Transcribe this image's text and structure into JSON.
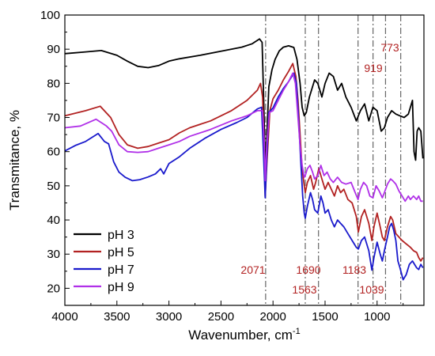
{
  "chart_data": {
    "type": "line",
    "xlabel": "Wavenumber, cm",
    "xlabel_sup": "-1",
    "ylabel": "Transmitance, %",
    "xlim": [
      4000,
      550
    ],
    "ylim": [
      15,
      100
    ],
    "xticks": [
      4000,
      3500,
      3000,
      2500,
      2000,
      1500,
      1000
    ],
    "yticks": [
      20,
      30,
      40,
      50,
      60,
      70,
      80,
      90,
      100
    ],
    "grid": false,
    "legend_position": "bottom-left",
    "annotation_color": "#b22222",
    "annotations": [
      {
        "label": "2071",
        "x": 2071
      },
      {
        "label": "1690",
        "x": 1690
      },
      {
        "label": "1563",
        "x": 1563
      },
      {
        "label": "1183",
        "x": 1183
      },
      {
        "label": "1039",
        "x": 1039
      },
      {
        "label": "919",
        "x": 919
      },
      {
        "label": "773",
        "x": 773
      }
    ],
    "series": [
      {
        "name": "pH 3",
        "color": "#000000",
        "points": [
          [
            4000,
            88.7
          ],
          [
            3800,
            89.2
          ],
          [
            3650,
            89.6
          ],
          [
            3500,
            88.2
          ],
          [
            3400,
            86.5
          ],
          [
            3300,
            85
          ],
          [
            3200,
            84.6
          ],
          [
            3100,
            85.2
          ],
          [
            3000,
            86.5
          ],
          [
            2900,
            87.2
          ],
          [
            2700,
            88.2
          ],
          [
            2500,
            89.4
          ],
          [
            2300,
            90.6
          ],
          [
            2200,
            91.6
          ],
          [
            2130,
            93
          ],
          [
            2105,
            92
          ],
          [
            2090,
            76
          ],
          [
            2075,
            57
          ],
          [
            2065,
            60
          ],
          [
            2040,
            79
          ],
          [
            2010,
            84
          ],
          [
            1980,
            87
          ],
          [
            1940,
            89.5
          ],
          [
            1900,
            90.6
          ],
          [
            1850,
            91
          ],
          [
            1800,
            90.5
          ],
          [
            1770,
            87
          ],
          [
            1740,
            80
          ],
          [
            1720,
            73
          ],
          [
            1700,
            70.5
          ],
          [
            1680,
            71.5
          ],
          [
            1650,
            76
          ],
          [
            1600,
            81
          ],
          [
            1570,
            80
          ],
          [
            1530,
            76
          ],
          [
            1500,
            80
          ],
          [
            1460,
            83
          ],
          [
            1420,
            82
          ],
          [
            1380,
            78
          ],
          [
            1340,
            80
          ],
          [
            1300,
            76
          ],
          [
            1250,
            73
          ],
          [
            1200,
            69
          ],
          [
            1160,
            72
          ],
          [
            1120,
            74
          ],
          [
            1080,
            69
          ],
          [
            1040,
            73
          ],
          [
            1000,
            72
          ],
          [
            960,
            66
          ],
          [
            930,
            67
          ],
          [
            900,
            70
          ],
          [
            860,
            72
          ],
          [
            820,
            71
          ],
          [
            780,
            70.5
          ],
          [
            740,
            70
          ],
          [
            700,
            71
          ],
          [
            660,
            75
          ],
          [
            645,
            60
          ],
          [
            630,
            57.5
          ],
          [
            615,
            66
          ],
          [
            600,
            67
          ],
          [
            580,
            66
          ],
          [
            560,
            58
          ]
        ]
      },
      {
        "name": "pH 5",
        "color": "#b22222",
        "points": [
          [
            4000,
            70.5
          ],
          [
            3800,
            72
          ],
          [
            3660,
            73.3
          ],
          [
            3560,
            70
          ],
          [
            3480,
            65
          ],
          [
            3400,
            62
          ],
          [
            3300,
            61
          ],
          [
            3200,
            61.5
          ],
          [
            3100,
            62.5
          ],
          [
            3000,
            63.5
          ],
          [
            2900,
            65.5
          ],
          [
            2800,
            67
          ],
          [
            2600,
            69
          ],
          [
            2400,
            72
          ],
          [
            2250,
            75
          ],
          [
            2150,
            78
          ],
          [
            2120,
            80
          ],
          [
            2100,
            76
          ],
          [
            2085,
            62
          ],
          [
            2075,
            47
          ],
          [
            2060,
            56
          ],
          [
            2030,
            72
          ],
          [
            2000,
            75.5
          ],
          [
            1950,
            78
          ],
          [
            1900,
            81
          ],
          [
            1850,
            83.5
          ],
          [
            1810,
            85.8
          ],
          [
            1780,
            82
          ],
          [
            1760,
            75
          ],
          [
            1740,
            65
          ],
          [
            1720,
            55
          ],
          [
            1700,
            50
          ],
          [
            1690,
            48
          ],
          [
            1670,
            51
          ],
          [
            1640,
            53
          ],
          [
            1610,
            49
          ],
          [
            1590,
            51
          ],
          [
            1560,
            55
          ],
          [
            1530,
            52
          ],
          [
            1500,
            49
          ],
          [
            1470,
            51
          ],
          [
            1440,
            49
          ],
          [
            1410,
            47
          ],
          [
            1380,
            50
          ],
          [
            1350,
            48
          ],
          [
            1320,
            49
          ],
          [
            1280,
            46
          ],
          [
            1240,
            45
          ],
          [
            1200,
            41
          ],
          [
            1180,
            36.5
          ],
          [
            1150,
            41
          ],
          [
            1120,
            43
          ],
          [
            1080,
            39
          ],
          [
            1050,
            34
          ],
          [
            1030,
            38
          ],
          [
            1000,
            42
          ],
          [
            970,
            38
          ],
          [
            950,
            35
          ],
          [
            930,
            34
          ],
          [
            900,
            38
          ],
          [
            870,
            41
          ],
          [
            850,
            40
          ],
          [
            820,
            36
          ],
          [
            790,
            35
          ],
          [
            760,
            34
          ],
          [
            720,
            33
          ],
          [
            680,
            32
          ],
          [
            650,
            31
          ],
          [
            620,
            30.5
          ],
          [
            600,
            29
          ],
          [
            580,
            28
          ],
          [
            560,
            29
          ]
        ]
      },
      {
        "name": "pH 7",
        "color": "#1a1acc",
        "points": [
          [
            4000,
            60.2
          ],
          [
            3900,
            61.8
          ],
          [
            3800,
            63
          ],
          [
            3680,
            65.3
          ],
          [
            3620,
            63
          ],
          [
            3580,
            62.3
          ],
          [
            3530,
            57
          ],
          [
            3480,
            54
          ],
          [
            3420,
            52.5
          ],
          [
            3350,
            51.5
          ],
          [
            3280,
            51.8
          ],
          [
            3200,
            52.6
          ],
          [
            3130,
            53.5
          ],
          [
            3080,
            55
          ],
          [
            3050,
            53.5
          ],
          [
            3000,
            56.5
          ],
          [
            2900,
            58.5
          ],
          [
            2800,
            61
          ],
          [
            2650,
            64
          ],
          [
            2500,
            66.5
          ],
          [
            2350,
            68.5
          ],
          [
            2250,
            70
          ],
          [
            2150,
            72.5
          ],
          [
            2110,
            73
          ],
          [
            2095,
            62
          ],
          [
            2075,
            46.5
          ],
          [
            2060,
            58
          ],
          [
            2040,
            71.5
          ],
          [
            2000,
            72.8
          ],
          [
            1950,
            76
          ],
          [
            1900,
            78.5
          ],
          [
            1850,
            80.5
          ],
          [
            1800,
            83
          ],
          [
            1775,
            80
          ],
          [
            1755,
            70
          ],
          [
            1735,
            58
          ],
          [
            1715,
            47
          ],
          [
            1700,
            42
          ],
          [
            1690,
            40.5
          ],
          [
            1670,
            44
          ],
          [
            1640,
            48
          ],
          [
            1620,
            46
          ],
          [
            1600,
            43
          ],
          [
            1570,
            42
          ],
          [
            1540,
            47
          ],
          [
            1520,
            45
          ],
          [
            1500,
            42
          ],
          [
            1470,
            43
          ],
          [
            1440,
            40
          ],
          [
            1410,
            38
          ],
          [
            1380,
            40
          ],
          [
            1350,
            39
          ],
          [
            1320,
            38
          ],
          [
            1280,
            36
          ],
          [
            1240,
            34
          ],
          [
            1200,
            32
          ],
          [
            1180,
            31.5
          ],
          [
            1150,
            34
          ],
          [
            1120,
            35
          ],
          [
            1080,
            31
          ],
          [
            1050,
            25.3
          ],
          [
            1030,
            29
          ],
          [
            1000,
            33.5
          ],
          [
            970,
            30
          ],
          [
            950,
            28
          ],
          [
            930,
            31
          ],
          [
            900,
            35
          ],
          [
            880,
            38
          ],
          [
            860,
            39
          ],
          [
            840,
            37
          ],
          [
            820,
            34
          ],
          [
            800,
            28
          ],
          [
            780,
            26
          ],
          [
            750,
            22.5
          ],
          [
            720,
            24
          ],
          [
            690,
            27
          ],
          [
            660,
            28
          ],
          [
            620,
            26
          ],
          [
            600,
            25.5
          ],
          [
            580,
            27
          ],
          [
            560,
            26
          ]
        ]
      },
      {
        "name": "pH 9",
        "color": "#b030e8",
        "points": [
          [
            4000,
            67
          ],
          [
            3850,
            67.5
          ],
          [
            3700,
            69.5
          ],
          [
            3650,
            68.5
          ],
          [
            3600,
            67.5
          ],
          [
            3550,
            66
          ],
          [
            3480,
            62
          ],
          [
            3400,
            60
          ],
          [
            3300,
            59.8
          ],
          [
            3200,
            60
          ],
          [
            3100,
            61
          ],
          [
            3000,
            62
          ],
          [
            2900,
            63
          ],
          [
            2800,
            64.5
          ],
          [
            2600,
            66.5
          ],
          [
            2400,
            69
          ],
          [
            2250,
            70.5
          ],
          [
            2150,
            72
          ],
          [
            2100,
            72
          ],
          [
            2085,
            63
          ],
          [
            2075,
            51.5
          ],
          [
            2060,
            62
          ],
          [
            2035,
            71.5
          ],
          [
            2000,
            72
          ],
          [
            1950,
            75
          ],
          [
            1900,
            78
          ],
          [
            1850,
            80.5
          ],
          [
            1810,
            83
          ],
          [
            1785,
            80
          ],
          [
            1765,
            72
          ],
          [
            1740,
            62
          ],
          [
            1720,
            56
          ],
          [
            1700,
            52.5
          ],
          [
            1690,
            53
          ],
          [
            1670,
            55
          ],
          [
            1645,
            56
          ],
          [
            1620,
            54
          ],
          [
            1600,
            52
          ],
          [
            1570,
            53
          ],
          [
            1540,
            56
          ],
          [
            1510,
            53
          ],
          [
            1480,
            54
          ],
          [
            1450,
            52
          ],
          [
            1420,
            51
          ],
          [
            1380,
            52.5
          ],
          [
            1340,
            51
          ],
          [
            1300,
            50.5
          ],
          [
            1250,
            51
          ],
          [
            1210,
            48
          ],
          [
            1183,
            46
          ],
          [
            1160,
            49
          ],
          [
            1130,
            51
          ],
          [
            1100,
            50
          ],
          [
            1070,
            47
          ],
          [
            1040,
            46.5
          ],
          [
            1010,
            50
          ],
          [
            980,
            48.5
          ],
          [
            950,
            46.5
          ],
          [
            930,
            48
          ],
          [
            900,
            50.5
          ],
          [
            870,
            52
          ],
          [
            850,
            51.5
          ],
          [
            820,
            50.5
          ],
          [
            790,
            48.5
          ],
          [
            760,
            47
          ],
          [
            730,
            45.5
          ],
          [
            700,
            47
          ],
          [
            680,
            46
          ],
          [
            650,
            47
          ],
          [
            620,
            46
          ],
          [
            600,
            47
          ],
          [
            580,
            45.5
          ],
          [
            560,
            45.5
          ]
        ]
      }
    ]
  }
}
